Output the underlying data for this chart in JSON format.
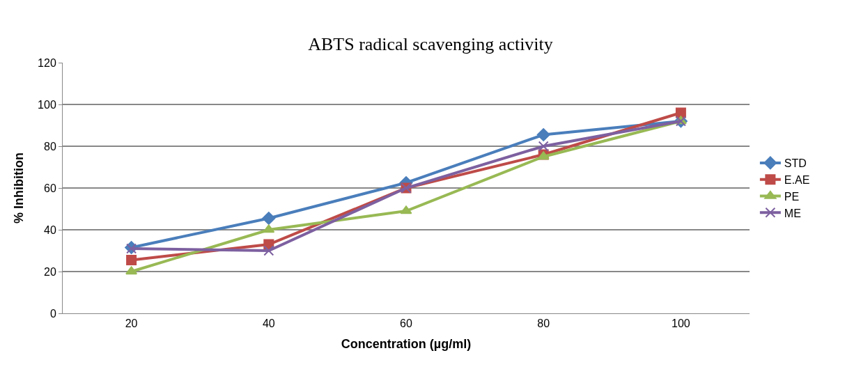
{
  "chart_data": {
    "type": "line",
    "title": "ABTS radical scavenging activity",
    "xlabel": "Concentration (µg/ml)",
    "ylabel": "% Inhibition",
    "categories": [
      "20",
      "40",
      "60",
      "80",
      "100"
    ],
    "series": [
      {
        "name": "STD",
        "color": "#4a7ebb",
        "marker": "diamond",
        "values": [
          31.5,
          45.5,
          62.5,
          85.5,
          92
        ]
      },
      {
        "name": "E.AE",
        "color": "#be4b48",
        "marker": "square",
        "values": [
          25.5,
          33,
          60,
          76,
          96
        ]
      },
      {
        "name": "PE",
        "color": "#98b954",
        "marker": "triangle",
        "values": [
          20,
          40,
          49,
          75,
          92
        ]
      },
      {
        "name": "ME",
        "color": "#7d60a0",
        "marker": "cross",
        "values": [
          31,
          30,
          60,
          80,
          92
        ]
      }
    ],
    "ylim": [
      0,
      120
    ],
    "yticks": [
      0,
      20,
      40,
      60,
      80,
      100,
      120
    ],
    "grid": "y",
    "legend": "right",
    "line_style": "solid"
  }
}
